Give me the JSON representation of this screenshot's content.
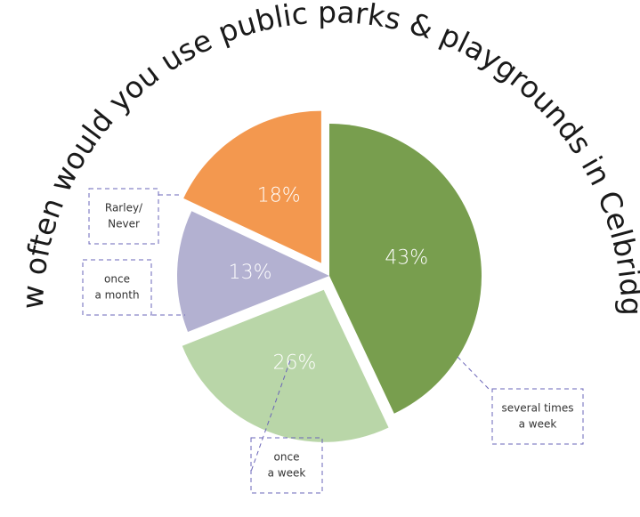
{
  "chart_data": {
    "type": "pie",
    "title": "How often would you use public parks & playgrounds in Celbridge?",
    "slices": [
      {
        "label": "several times a week",
        "label_lines": [
          "several times",
          "a week"
        ],
        "value": 43,
        "display": "43%",
        "color": "#789e4e",
        "exploded": false
      },
      {
        "label": "once a week",
        "label_lines": [
          "once",
          "a week"
        ],
        "value": 26,
        "display": "26%",
        "color": "#b9d6a8",
        "exploded": true
      },
      {
        "label": "once a month",
        "label_lines": [
          "once",
          "a month"
        ],
        "value": 13,
        "display": "13%",
        "color": "#b3b1d1",
        "exploded": false
      },
      {
        "label": "Rarley/ Never",
        "label_lines": [
          "Rarley/",
          "Never"
        ],
        "value": 18,
        "display": "18%",
        "color": "#f3984f",
        "exploded": true
      }
    ]
  }
}
